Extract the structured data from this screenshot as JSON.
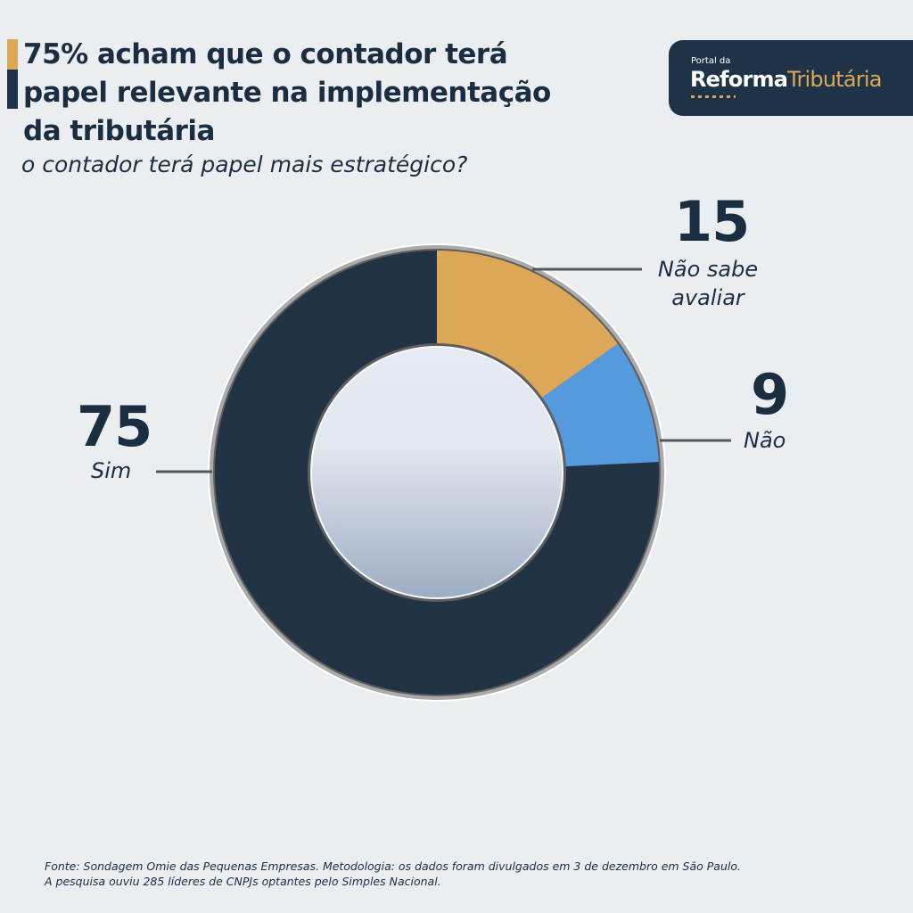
{
  "header": {
    "title_lines": [
      "75% acham que o contador terá",
      "papel relevante na implementação",
      "da tributária"
    ],
    "subtitle": "o contador terá papel mais estratégico?"
  },
  "logo": {
    "small": "Portal da",
    "word1": "Reforma",
    "word2": "Tributária"
  },
  "labels": {
    "sim": {
      "value": "75",
      "label": "Sim"
    },
    "nao_sabe": {
      "value": "15",
      "label_lines": [
        "Não sabe",
        "avaliar"
      ]
    },
    "nao": {
      "value": "9",
      "label": "Não"
    }
  },
  "footer": {
    "lines": [
      "Fonte: Sondagem Omie das Pequenas Empresas. Metodologia: os dados foram divulgados em 3 de dezembro em São Paulo.",
      "A pesquisa ouviu 285 líderes de CNPJs optantes pelo Simples Nacional."
    ]
  },
  "colors": {
    "sim": "#213345",
    "nao_sabe": "#dca858",
    "nao": "#5599de",
    "background": "#ebeef1",
    "text": "#1b2d40"
  },
  "chart_data": {
    "type": "pie",
    "subtype": "donut",
    "title": "75% acham que o contador terá papel relevante na implementação da tributária",
    "subtitle": "o contador terá papel mais estratégico?",
    "categories": [
      "Não sabe avaliar",
      "Não",
      "Sim"
    ],
    "values": [
      15,
      9,
      75
    ],
    "unit": "%",
    "colors": [
      "#dca858",
      "#5599de",
      "#213345"
    ],
    "start_angle": "12 o'clock, clockwise",
    "note": "Fonte: Sondagem Omie das Pequenas Empresas. 285 líderes de CNPJs optantes pelo Simples Nacional."
  }
}
